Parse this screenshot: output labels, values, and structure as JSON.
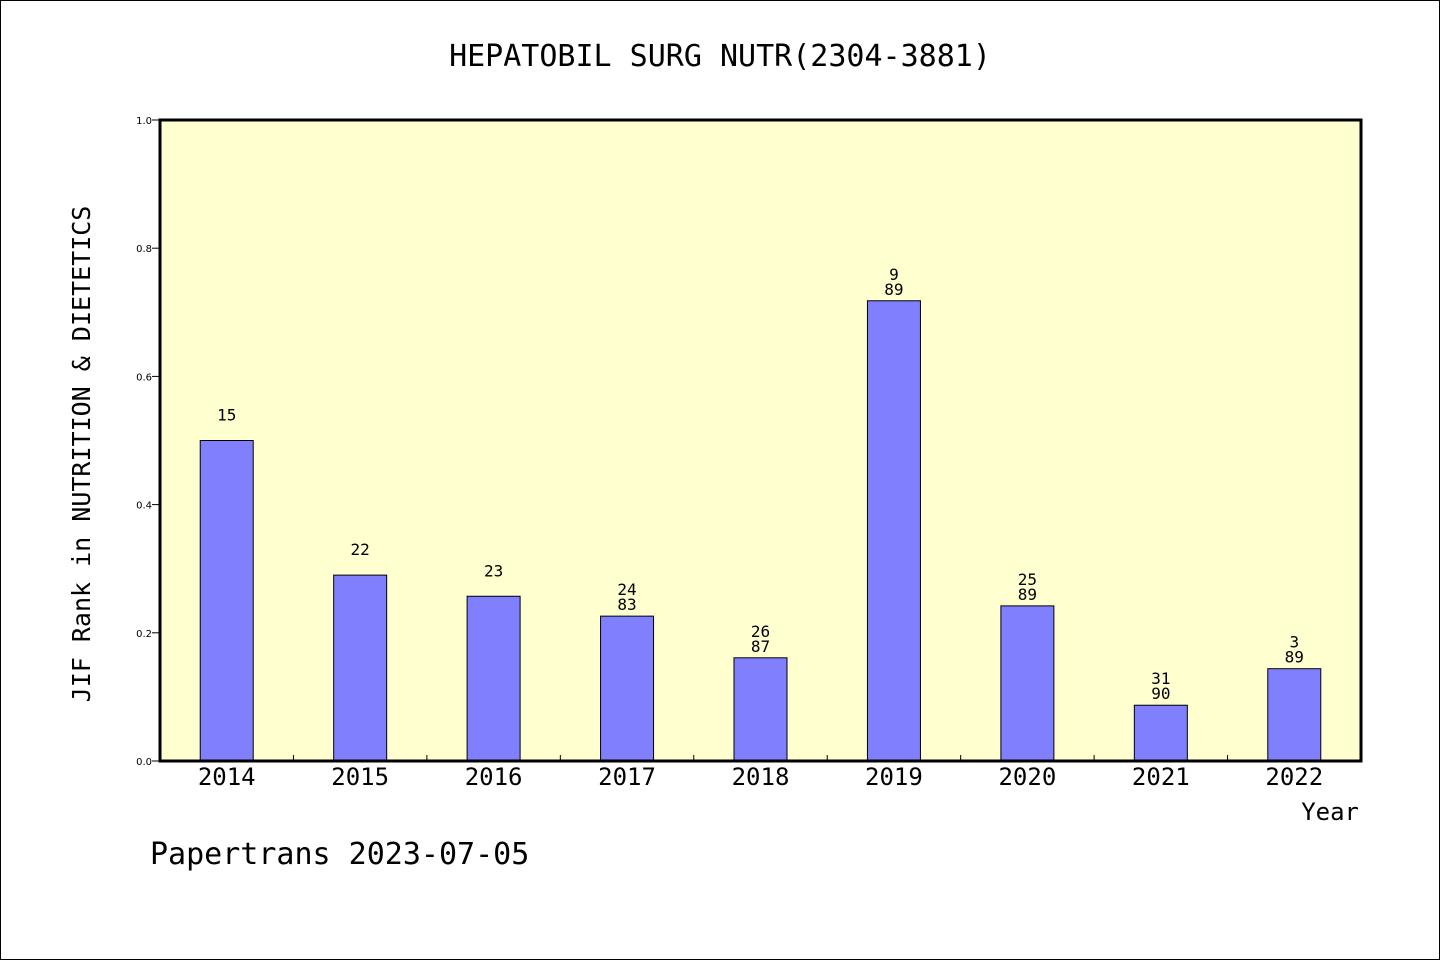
{
  "chart_data": {
    "type": "bar",
    "title": "HEPATOBIL SURG NUTR(2304-3881)",
    "xlabel": "Year",
    "ylabel": "JIF Rank in NUTRITION & DIETETICS",
    "ylim": [
      0,
      1.0
    ],
    "yticks": [
      "0.0",
      "0.2",
      "0.4",
      "0.6",
      "0.8",
      "1.0"
    ],
    "categories": [
      "2014",
      "2015",
      "2016",
      "2017",
      "2018",
      "2019",
      "2020",
      "2021",
      "2022"
    ],
    "values": [
      0.5,
      0.29,
      0.257,
      0.226,
      0.161,
      0.718,
      0.242,
      0.087,
      0.144
    ],
    "bar_labels": [
      [
        "15"
      ],
      [
        "22"
      ],
      [
        "23"
      ],
      [
        "24",
        "83"
      ],
      [
        "26",
        "87"
      ],
      [
        "9",
        "89"
      ],
      [
        "25",
        "89"
      ],
      [
        "31",
        "90"
      ],
      [
        "3",
        "89"
      ]
    ],
    "bar_color": "#8080ff",
    "plot_background": "#ffffd0",
    "grid": false,
    "legend": "none"
  },
  "footer": "Papertrans 2023-07-05"
}
